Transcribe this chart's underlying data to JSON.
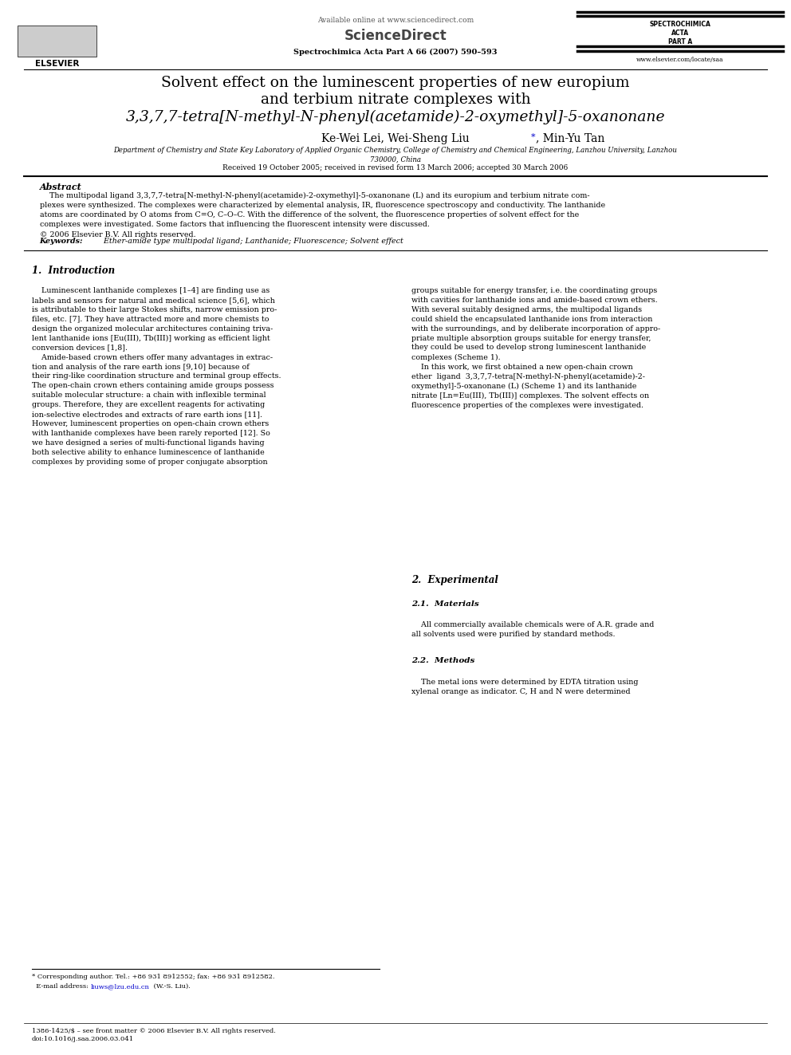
{
  "background_color": "#ffffff",
  "header_available_online": "Available online at www.sciencedirect.com",
  "header_sciencedirect": "ScienceDirect",
  "header_journal_name_line1": "SPECTROCHIMICA",
  "header_journal_name_line2": "ACTA",
  "header_journal_name_line3": "PART A",
  "header_journal_ref": "Spectrochimica Acta Part A 66 (2007) 590–593",
  "header_elsevier": "ELSEVIER",
  "header_website": "www.elsevier.com/locate/saa",
  "title_line1": "Solvent effect on the luminescent properties of new europium",
  "title_line2": "and terbium nitrate complexes with",
  "title_line3": "3,3,7,7-tetra[N-methyl-N-phenyl(acetamide)-2-oxymethyl]-5-oxanonane",
  "authors_part1": "Ke-Wei Lei, Wei-Sheng Liu",
  "authors_star": "*",
  "authors_part2": ", Min-Yu Tan",
  "affiliation": "Department of Chemistry and State Key Laboratory of Applied Organic Chemistry, College of Chemistry and Chemical Engineering, Lanzhou University, Lanzhou\n730000, China",
  "received": "Received 19 October 2005; received in revised form 13 March 2006; accepted 30 March 2006",
  "abstract_title": "Abstract",
  "abstract_text": "    The multipodal ligand 3,3,7,7-tetra[N-methyl-N-phenyl(acetamide)-2-oxymethyl]-5-oxanonane (L) and its europium and terbium nitrate com-\nplexes were synthesized. The complexes were characterized by elemental analysis, IR, fluorescence spectroscopy and conductivity. The lanthanide\natoms are coordinated by O atoms from C=O, C–O–C. With the difference of the solvent, the fluorescence properties of solvent effect for the\ncomplexes were investigated. Some factors that influencing the fluorescent intensity were discussed.\n© 2006 Elsevier B.V. All rights reserved.",
  "keywords_label": "Keywords:",
  "keywords_text": "  Ether-amide type multipodal ligand; Lanthanide; Fluorescence; Solvent effect",
  "section1_title": "1.  Introduction",
  "col1_text": "    Luminescent lanthanide complexes [1–4] are finding use as\nlabels and sensors for natural and medical science [5,6], which\nis attributable to their large Stokes shifts, narrow emission pro-\nfiles, etc. [7]. They have attracted more and more chemists to\ndesign the organized molecular architectures containing triva-\nlent lanthanide ions [Eu(III), Tb(III)] working as efficient light\nconversion devices [1,8].\n    Amide-based crown ethers offer many advantages in extrac-\ntion and analysis of the rare earth ions [9,10] because of\ntheir ring-like coordination structure and terminal group effects.\nThe open-chain crown ethers containing amide groups possess\nsuitable molecular structure: a chain with inflexible terminal\ngroups. Therefore, they are excellent reagents for activating\nion-selective electrodes and extracts of rare earth ions [11].\nHowever, luminescent properties on open-chain crown ethers\nwith lanthanide complexes have been rarely reported [12]. So\nwe have designed a series of multi-functional ligands having\nboth selective ability to enhance luminescence of lanthanide\ncomplexes by providing some of proper conjugate absorption",
  "col2_text": "groups suitable for energy transfer, i.e. the coordinating groups\nwith cavities for lanthanide ions and amide-based crown ethers.\nWith several suitably designed arms, the multipodal ligands\ncould shield the encapsulated lanthanide ions from interaction\nwith the surroundings, and by deliberate incorporation of appro-\npriate multiple absorption groups suitable for energy transfer,\nthey could be used to develop strong luminescent lanthanide\ncomplexes (Scheme 1).\n    In this work, we first obtained a new open-chain crown\nether  ligand  3,3,7,7-tetra[N-methyl-N-phenyl(acetamide)-2-\noxymethyl]-5-oxanonane (L) (Scheme 1) and its lanthanide\nnitrate [Ln=Eu(III), Tb(III)] complexes. The solvent effects on\nfluorescence properties of the complexes were investigated.",
  "section2_title": "2.  Experimental",
  "section2_1_title": "2.1.  Materials",
  "section2_1_text": "    All commercially available chemicals were of A.R. grade and\nall solvents used were purified by standard methods.",
  "section2_2_title": "2.2.  Methods",
  "section2_2_text": "    The metal ions were determined by EDTA titration using\nxylenal orange as indicator. C, H and N were determined",
  "footnote_star": "* Corresponding author. Tel.: +86 931 8912552; fax: +86 931 8912582.\n  E-mail address: liuws@lzu.edu.cn (W.-S. Liu).",
  "footnote_email_label": "  E-mail address: ",
  "footnote_email": "liuws@lzu.edu.cn",
  "footnote_email_rest": " (W.-S. Liu).",
  "footnote_issn": "1386-1425/$ – see front matter © 2006 Elsevier B.V. All rights reserved.",
  "footnote_doi": "doi:10.1016/j.saa.2006.03.041",
  "accent_color": "#0000cc"
}
